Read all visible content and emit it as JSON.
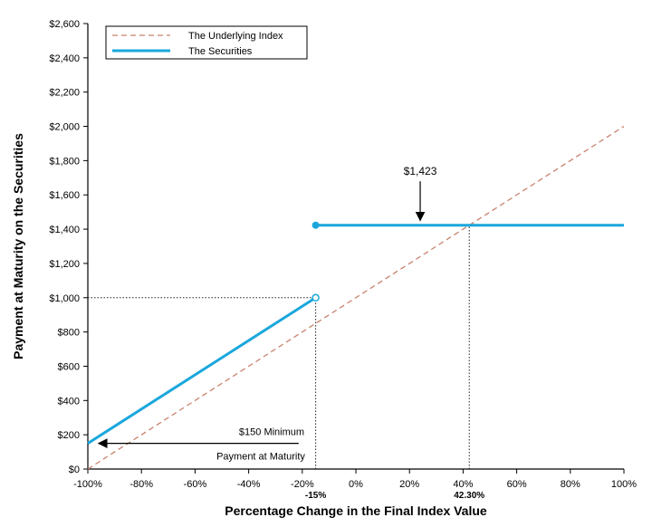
{
  "chart_data": {
    "type": "line",
    "title": "",
    "xlabel": "Percentage Change in the Final Index Value",
    "ylabel": "Payment at Maturity on the Securities",
    "xlim": [
      -100,
      100
    ],
    "ylim": [
      0,
      2600
    ],
    "x_ticks": [
      -100,
      -80,
      -60,
      -40,
      -20,
      0,
      20,
      40,
      60,
      80,
      100
    ],
    "x_tick_labels": [
      "-100%",
      "-80%",
      "-60%",
      "-40%",
      "-20%",
      "0%",
      "20%",
      "40%",
      "60%",
      "80%",
      "100%"
    ],
    "y_ticks": [
      0,
      200,
      400,
      600,
      800,
      1000,
      1200,
      1400,
      1600,
      1800,
      2000,
      2200,
      2400,
      2600
    ],
    "y_tick_labels": [
      "$0",
      "$200",
      "$400",
      "$600",
      "$800",
      "$1,000",
      "$1,200",
      "$1,400",
      "$1,600",
      "$1,800",
      "$2,000",
      "$2,200",
      "$2,400",
      "$2,600"
    ],
    "grid": false,
    "legend_position": "top-left",
    "series": [
      {
        "name": "The Underlying Index",
        "style": "dashed",
        "color": "#c8826c",
        "x": [
          -100,
          100
        ],
        "y": [
          0,
          2000
        ]
      },
      {
        "name": "The Securities",
        "style": "solid",
        "color": "#1aa7dc",
        "segments": [
          {
            "x": [
              -100,
              -15
            ],
            "y": [
              150,
              1000
            ],
            "end_marker": "open"
          },
          {
            "x": [
              -15,
              100
            ],
            "y": [
              1423,
              1423
            ],
            "start_marker": "filled"
          }
        ]
      }
    ],
    "reference_lines": [
      {
        "type": "horizontal",
        "y": 1000,
        "x_from": -100,
        "x_to": -15
      },
      {
        "type": "vertical",
        "x": -15,
        "y_from": 0,
        "y_to": 1000
      },
      {
        "type": "vertical",
        "x": 42.3,
        "y_from": 0,
        "y_to": 1423
      }
    ],
    "annotations": [
      {
        "id": "cap",
        "text": "$1,423",
        "arrow_x": 24,
        "arrow_y_from": 1780,
        "arrow_y_to": 1440
      },
      {
        "id": "min",
        "lines": [
          "$150 Minimum",
          "Payment at Maturity"
        ],
        "arrow_from_x": -20,
        "arrow_to_x": -96,
        "arrow_y": 150
      },
      {
        "id": "x15",
        "text": "-15%",
        "x": -15
      },
      {
        "id": "x42",
        "text": "42.30%",
        "x": 42.3
      }
    ]
  }
}
